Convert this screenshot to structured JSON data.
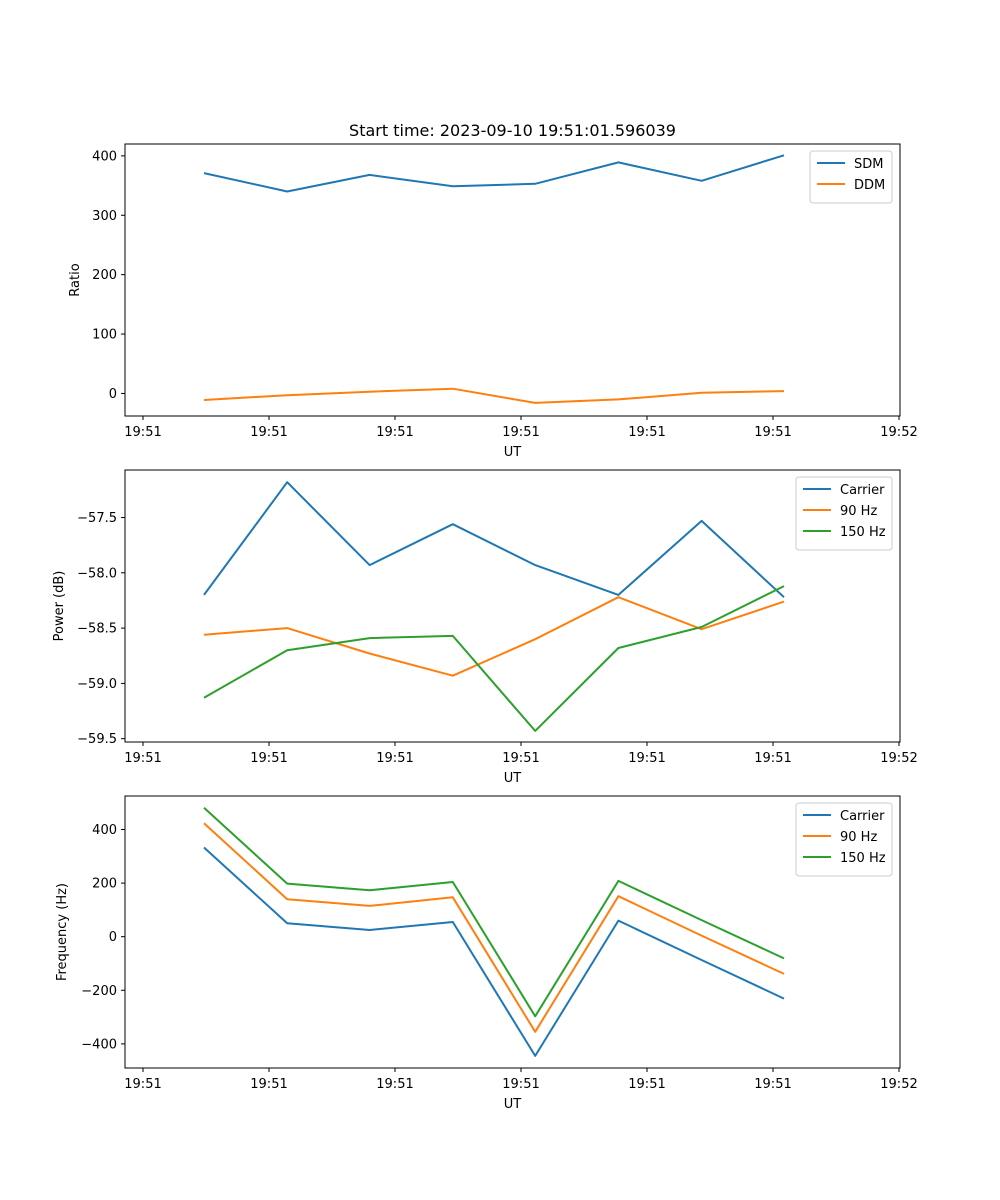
{
  "figure": {
    "title": "Start time: 2023-09-10 19:51:01.596039"
  },
  "colors": {
    "blue": "#1f77b4",
    "orange": "#ff7f0e",
    "green": "#2ca02c"
  },
  "chart_data": [
    {
      "type": "line",
      "title": "Start time: 2023-09-10 19:51:01.596039",
      "xlabel": "UT",
      "ylabel": "Ratio",
      "x_tick_labels": [
        "19:51",
        "19:51",
        "19:51",
        "19:51",
        "19:51",
        "19:51",
        "19:52"
      ],
      "y_ticks": [
        0,
        100,
        200,
        300,
        400
      ],
      "y_tick_labels": [
        "0",
        "100",
        "200",
        "300",
        "400"
      ],
      "xlim": [
        -0.22,
        9.0
      ],
      "ylim": [
        -38,
        420
      ],
      "legend_position": "top-right",
      "series": [
        {
          "name": "SDM",
          "color": "#1f77b4",
          "x": [
            0.72,
            1.71,
            2.69,
            3.68,
            4.66,
            5.65,
            6.64,
            7.62
          ],
          "y": [
            371,
            340,
            368,
            349,
            353,
            389,
            358,
            401
          ]
        },
        {
          "name": "DDM",
          "color": "#ff7f0e",
          "x": [
            0.72,
            1.71,
            2.69,
            3.68,
            4.66,
            5.65,
            6.64,
            7.62
          ],
          "y": [
            -11,
            -3,
            3,
            8,
            -16,
            -10,
            1,
            4
          ]
        }
      ]
    },
    {
      "type": "line",
      "title": "",
      "xlabel": "UT",
      "ylabel": "Power (dB)",
      "x_tick_labels": [
        "19:51",
        "19:51",
        "19:51",
        "19:51",
        "19:51",
        "19:51",
        "19:52"
      ],
      "y_ticks": [
        -59.5,
        -59.0,
        -58.5,
        -58.0,
        -57.5
      ],
      "y_tick_labels": [
        "−59.5",
        "−59.0",
        "−58.5",
        "−58.0",
        "−57.5"
      ],
      "xlim": [
        -0.22,
        9.0
      ],
      "ylim": [
        -59.53,
        -57.07
      ],
      "legend_position": "top-right",
      "series": [
        {
          "name": "Carrier",
          "color": "#1f77b4",
          "x": [
            0.72,
            1.71,
            2.69,
            3.68,
            4.66,
            5.65,
            6.64,
            7.62
          ],
          "y": [
            -58.2,
            -57.18,
            -57.93,
            -57.56,
            -57.93,
            -58.2,
            -57.53,
            -58.22
          ]
        },
        {
          "name": "90 Hz",
          "color": "#ff7f0e",
          "x": [
            0.72,
            1.71,
            2.69,
            3.68,
            4.66,
            5.65,
            6.64,
            7.62
          ],
          "y": [
            -58.56,
            -58.5,
            -58.73,
            -58.93,
            -58.6,
            -58.22,
            -58.51,
            -58.26
          ]
        },
        {
          "name": "150 Hz",
          "color": "#2ca02c",
          "x": [
            0.72,
            1.71,
            2.69,
            3.68,
            4.66,
            5.65,
            6.64,
            7.62
          ],
          "y": [
            -59.13,
            -58.7,
            -58.59,
            -58.57,
            -59.43,
            -58.68,
            -58.49,
            -58.12
          ]
        }
      ]
    },
    {
      "type": "line",
      "title": "",
      "xlabel": "UT",
      "ylabel": "Frequency (Hz)",
      "x_tick_labels": [
        "19:51",
        "19:51",
        "19:51",
        "19:51",
        "19:51",
        "19:51",
        "19:52"
      ],
      "y_ticks": [
        -400,
        -200,
        0,
        200,
        400
      ],
      "y_tick_labels": [
        "−400",
        "−200",
        "0",
        "200",
        "400"
      ],
      "xlim": [
        -0.22,
        9.0
      ],
      "ylim": [
        -490,
        525
      ],
      "legend_position": "top-right",
      "series": [
        {
          "name": "Carrier",
          "color": "#1f77b4",
          "x": [
            0.72,
            1.71,
            2.69,
            3.68,
            4.66,
            5.65,
            6.64,
            7.62
          ],
          "y": [
            333,
            50,
            25,
            55,
            -445,
            60,
            -87,
            -231
          ]
        },
        {
          "name": "90 Hz",
          "color": "#ff7f0e",
          "x": [
            0.72,
            1.71,
            2.69,
            3.68,
            4.66,
            5.65,
            6.64,
            7.62
          ],
          "y": [
            423,
            140,
            115,
            147,
            -355,
            151,
            4,
            -139
          ]
        },
        {
          "name": "150 Hz",
          "color": "#2ca02c",
          "x": [
            0.72,
            1.71,
            2.69,
            3.68,
            4.66,
            5.65,
            6.64,
            7.62
          ],
          "y": [
            481,
            198,
            173,
            204,
            -297,
            208,
            62,
            -81
          ]
        }
      ]
    }
  ]
}
